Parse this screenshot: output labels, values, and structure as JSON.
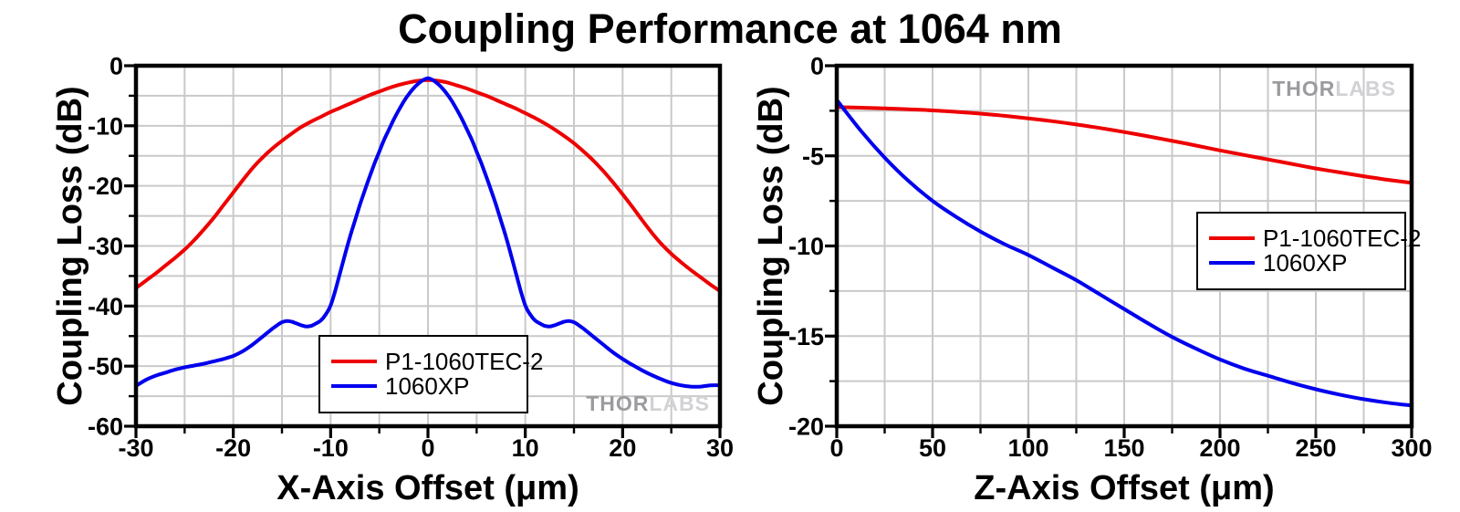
{
  "title": "Coupling Performance at 1064 nm",
  "watermark": {
    "prefix": "THOR",
    "suffix": "LABS"
  },
  "colors": {
    "series_red": "#ee0000",
    "series_blue": "#0000ee",
    "grid": "#c9c9c9",
    "axis": "#000000",
    "watermark_dark": "#9b9b9f",
    "watermark_light": "#d2d2d6",
    "legend_border": "#000000",
    "background": "#ffffff"
  },
  "chart_data": [
    {
      "type": "line",
      "title": "",
      "xlabel": "X-Axis Offset (μm)",
      "ylabel": "Coupling Loss (dB)",
      "xlim": [
        -30,
        30
      ],
      "ylim": [
        -60,
        0
      ],
      "xticks": [
        -30,
        -20,
        -10,
        0,
        10,
        20,
        30
      ],
      "yticks": [
        0,
        -10,
        -20,
        -30,
        -40,
        -50,
        -60
      ],
      "x_minor_step": 5,
      "y_minor_step": 5,
      "grid": true,
      "legend": {
        "position": "bottom-center",
        "entries": [
          "P1-1060TEC-2",
          "1060XP"
        ]
      },
      "series": [
        {
          "name": "P1-1060TEC-2",
          "color_key": "series_red",
          "points": [
            [
              -30,
              -37
            ],
            [
              -29,
              -35.8
            ],
            [
              -28,
              -34.6
            ],
            [
              -27,
              -33.3
            ],
            [
              -26,
              -32
            ],
            [
              -25,
              -30.6
            ],
            [
              -24,
              -29
            ],
            [
              -23,
              -27.2
            ],
            [
              -22,
              -25.3
            ],
            [
              -21,
              -23.2
            ],
            [
              -20,
              -21.1
            ],
            [
              -19,
              -19
            ],
            [
              -18,
              -17
            ],
            [
              -17,
              -15.3
            ],
            [
              -16,
              -13.8
            ],
            [
              -15,
              -12.5
            ],
            [
              -14,
              -11.3
            ],
            [
              -13,
              -10.2
            ],
            [
              -12,
              -9.3
            ],
            [
              -11,
              -8.5
            ],
            [
              -10,
              -7.7
            ],
            [
              -9,
              -7
            ],
            [
              -8,
              -6.3
            ],
            [
              -7,
              -5.6
            ],
            [
              -6,
              -4.9
            ],
            [
              -5,
              -4.3
            ],
            [
              -4,
              -3.7
            ],
            [
              -3,
              -3.2
            ],
            [
              -2,
              -2.8
            ],
            [
              -1,
              -2.5
            ],
            [
              0,
              -2.4
            ],
            [
              1,
              -2.5
            ],
            [
              2,
              -2.8
            ],
            [
              3,
              -3.3
            ],
            [
              4,
              -3.8
            ],
            [
              5,
              -4.4
            ],
            [
              6,
              -5
            ],
            [
              7,
              -5.7
            ],
            [
              8,
              -6.4
            ],
            [
              9,
              -7.1
            ],
            [
              10,
              -7.9
            ],
            [
              11,
              -8.7
            ],
            [
              12,
              -9.6
            ],
            [
              13,
              -10.6
            ],
            [
              14,
              -11.7
            ],
            [
              15,
              -12.9
            ],
            [
              16,
              -14.3
            ],
            [
              17,
              -15.8
            ],
            [
              18,
              -17.5
            ],
            [
              19,
              -19.4
            ],
            [
              20,
              -21.4
            ],
            [
              21,
              -23.5
            ],
            [
              22,
              -25.7
            ],
            [
              23,
              -27.8
            ],
            [
              24,
              -29.7
            ],
            [
              25,
              -31.3
            ],
            [
              26,
              -32.7
            ],
            [
              27,
              -34
            ],
            [
              28,
              -35.2
            ],
            [
              29,
              -36.4
            ],
            [
              30,
              -37.5
            ]
          ]
        },
        {
          "name": "1060XP",
          "color_key": "series_blue",
          "points": [
            [
              -30,
              -53.3
            ],
            [
              -29,
              -52.3
            ],
            [
              -28,
              -51.6
            ],
            [
              -27,
              -51.1
            ],
            [
              -26,
              -50.6
            ],
            [
              -25,
              -50.2
            ],
            [
              -24,
              -49.9
            ],
            [
              -23,
              -49.6
            ],
            [
              -22,
              -49.2
            ],
            [
              -21,
              -48.8
            ],
            [
              -20,
              -48.3
            ],
            [
              -19,
              -47.5
            ],
            [
              -18,
              -46.4
            ],
            [
              -17,
              -45.1
            ],
            [
              -16,
              -43.8
            ],
            [
              -15.5,
              -43.2
            ],
            [
              -15,
              -42.7
            ],
            [
              -14.5,
              -42.5
            ],
            [
              -14,
              -42.6
            ],
            [
              -13.5,
              -42.9
            ],
            [
              -13,
              -43.2
            ],
            [
              -12.5,
              -43.4
            ],
            [
              -12,
              -43.3
            ],
            [
              -11.5,
              -42.9
            ],
            [
              -11,
              -42.4
            ],
            [
              -10.5,
              -41.4
            ],
            [
              -10,
              -39.9
            ],
            [
              -9.5,
              -37.3
            ],
            [
              -9,
              -34.3
            ],
            [
              -8.5,
              -31.3
            ],
            [
              -8,
              -28.4
            ],
            [
              -7.5,
              -25.8
            ],
            [
              -7,
              -23.2
            ],
            [
              -6.5,
              -20.8
            ],
            [
              -6,
              -18.5
            ],
            [
              -5.5,
              -16.3
            ],
            [
              -5,
              -14.3
            ],
            [
              -4.5,
              -12.3
            ],
            [
              -4,
              -10.6
            ],
            [
              -3.5,
              -8.9
            ],
            [
              -3,
              -7.4
            ],
            [
              -2.5,
              -6
            ],
            [
              -2,
              -4.8
            ],
            [
              -1.5,
              -3.8
            ],
            [
              -1,
              -3
            ],
            [
              -0.5,
              -2.4
            ],
            [
              0,
              -2.1
            ],
            [
              0.5,
              -2.4
            ],
            [
              1,
              -3
            ],
            [
              1.5,
              -3.8
            ],
            [
              2,
              -4.8
            ],
            [
              2.5,
              -6
            ],
            [
              3,
              -7.4
            ],
            [
              3.5,
              -8.9
            ],
            [
              4,
              -10.6
            ],
            [
              4.5,
              -12.3
            ],
            [
              5,
              -14.3
            ],
            [
              5.5,
              -16.3
            ],
            [
              6,
              -18.5
            ],
            [
              6.5,
              -20.8
            ],
            [
              7,
              -23.2
            ],
            [
              7.5,
              -25.8
            ],
            [
              8,
              -28.4
            ],
            [
              8.5,
              -31.3
            ],
            [
              9,
              -34.3
            ],
            [
              9.5,
              -37.3
            ],
            [
              10,
              -39.9
            ],
            [
              10.5,
              -41.4
            ],
            [
              11,
              -42.4
            ],
            [
              11.5,
              -42.9
            ],
            [
              12,
              -43.3
            ],
            [
              12.5,
              -43.4
            ],
            [
              13,
              -43.2
            ],
            [
              13.5,
              -42.9
            ],
            [
              14,
              -42.6
            ],
            [
              14.5,
              -42.5
            ],
            [
              15,
              -42.7
            ],
            [
              15.5,
              -43.2
            ],
            [
              16,
              -43.8
            ],
            [
              17,
              -45.1
            ],
            [
              18,
              -46.4
            ],
            [
              19,
              -47.7
            ],
            [
              20,
              -48.8
            ],
            [
              21,
              -49.8
            ],
            [
              22,
              -50.7
            ],
            [
              23,
              -51.5
            ],
            [
              24,
              -52.2
            ],
            [
              25,
              -52.8
            ],
            [
              26,
              -53.2
            ],
            [
              27,
              -53.4
            ],
            [
              28,
              -53.4
            ],
            [
              29,
              -53.2
            ],
            [
              30,
              -53.2
            ]
          ]
        }
      ]
    },
    {
      "type": "line",
      "title": "",
      "xlabel": "Z-Axis Offset (μm)",
      "ylabel": "Coupling Loss (dB)",
      "xlim": [
        0,
        300
      ],
      "ylim": [
        -20,
        0
      ],
      "xticks": [
        0,
        50,
        100,
        150,
        200,
        250,
        300
      ],
      "yticks": [
        0,
        -5,
        -10,
        -15,
        -20
      ],
      "x_minor_step": 25,
      "y_minor_step": 2.5,
      "grid": true,
      "legend": {
        "position": "middle-right",
        "entries": [
          "P1-1060TEC-2",
          "1060XP"
        ]
      },
      "series": [
        {
          "name": "P1-1060TEC-2",
          "color_key": "series_red",
          "points": [
            [
              0,
              -2.3
            ],
            [
              12.5,
              -2.33
            ],
            [
              25,
              -2.37
            ],
            [
              37.5,
              -2.42
            ],
            [
              50,
              -2.48
            ],
            [
              62.5,
              -2.56
            ],
            [
              75,
              -2.66
            ],
            [
              87.5,
              -2.78
            ],
            [
              100,
              -2.92
            ],
            [
              112.5,
              -3.08
            ],
            [
              125,
              -3.26
            ],
            [
              137.5,
              -3.46
            ],
            [
              150,
              -3.68
            ],
            [
              162.5,
              -3.92
            ],
            [
              175,
              -4.17
            ],
            [
              187.5,
              -4.43
            ],
            [
              200,
              -4.7
            ],
            [
              212.5,
              -4.95
            ],
            [
              225,
              -5.2
            ],
            [
              237.5,
              -5.45
            ],
            [
              250,
              -5.7
            ],
            [
              262.5,
              -5.92
            ],
            [
              275,
              -6.13
            ],
            [
              287.5,
              -6.33
            ],
            [
              300,
              -6.5
            ]
          ]
        },
        {
          "name": "1060XP",
          "color_key": "series_blue",
          "points": [
            [
              0,
              -1.9
            ],
            [
              12.5,
              -3.6
            ],
            [
              25,
              -5.1
            ],
            [
              37.5,
              -6.4
            ],
            [
              50,
              -7.5
            ],
            [
              62.5,
              -8.4
            ],
            [
              75,
              -9.2
            ],
            [
              87.5,
              -9.9
            ],
            [
              100,
              -10.5
            ],
            [
              112.5,
              -11.2
            ],
            [
              125,
              -11.9
            ],
            [
              137.5,
              -12.7
            ],
            [
              150,
              -13.5
            ],
            [
              162.5,
              -14.3
            ],
            [
              175,
              -15.05
            ],
            [
              187.5,
              -15.7
            ],
            [
              200,
              -16.3
            ],
            [
              212.5,
              -16.8
            ],
            [
              225,
              -17.2
            ],
            [
              237.5,
              -17.6
            ],
            [
              250,
              -17.95
            ],
            [
              262.5,
              -18.25
            ],
            [
              275,
              -18.5
            ],
            [
              287.5,
              -18.7
            ],
            [
              300,
              -18.85
            ]
          ]
        }
      ]
    }
  ]
}
